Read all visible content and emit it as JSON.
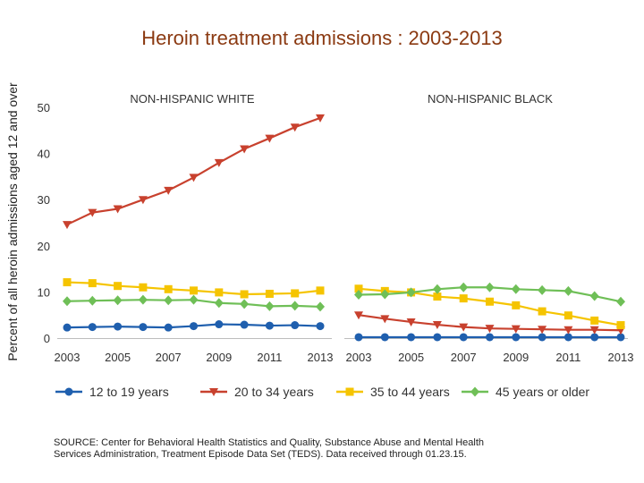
{
  "title": "Heroin treatment admissions : 2003-2013",
  "source_note": "SOURCE: Center for Behavioral Health Statistics and Quality, Substance Abuse and Mental Health Services Administration, Treatment Episode Data Set (TEDS). Data received through 01.23.15.",
  "chart_data": [
    {
      "type": "line",
      "title": "NON-HISPANIC WHITE",
      "ylabel": "Percent of all heroin admissions aged 12 and over",
      "xlabel": "",
      "ylim": [
        0,
        50
      ],
      "yticks": [
        0,
        10,
        20,
        30,
        40,
        50
      ],
      "x": [
        2003,
        2004,
        2005,
        2006,
        2007,
        2008,
        2009,
        2010,
        2011,
        2012,
        2013
      ],
      "xticks": [
        2003,
        2005,
        2007,
        2009,
        2011,
        2013
      ],
      "grid": false,
      "legend": "bottom",
      "series": [
        {
          "name": "12 to 19 years",
          "color": "#1f5fae",
          "marker": "circle",
          "values": [
            2.3,
            2.4,
            2.5,
            2.4,
            2.3,
            2.6,
            3.0,
            2.9,
            2.7,
            2.8,
            2.6
          ]
        },
        {
          "name": "20 to 34 years",
          "color": "#c8412e",
          "marker": "triangle-down",
          "values": [
            24.6,
            27.2,
            28.0,
            30.0,
            32.0,
            34.8,
            38.0,
            41.0,
            43.3,
            45.7,
            47.7
          ]
        },
        {
          "name": "35 to 44 years",
          "color": "#f5c400",
          "marker": "square",
          "values": [
            12.1,
            11.9,
            11.3,
            11.0,
            10.6,
            10.3,
            9.9,
            9.5,
            9.6,
            9.7,
            10.3
          ]
        },
        {
          "name": "45 years or older",
          "color": "#6fbf57",
          "marker": "diamond",
          "values": [
            8.0,
            8.1,
            8.2,
            8.3,
            8.2,
            8.3,
            7.6,
            7.4,
            6.9,
            7.0,
            6.8
          ]
        }
      ]
    },
    {
      "type": "line",
      "title": "NON-HISPANIC BLACK",
      "ylim": [
        0,
        50
      ],
      "x": [
        2003,
        2004,
        2005,
        2006,
        2007,
        2008,
        2009,
        2010,
        2011,
        2012,
        2013
      ],
      "xticks": [
        2003,
        2005,
        2007,
        2009,
        2011,
        2013
      ],
      "grid": false,
      "series": [
        {
          "name": "12 to 19 years",
          "color": "#1f5fae",
          "marker": "circle",
          "values": [
            0.2,
            0.2,
            0.2,
            0.2,
            0.2,
            0.2,
            0.2,
            0.2,
            0.2,
            0.2,
            0.2
          ]
        },
        {
          "name": "20 to 34 years",
          "color": "#c8412e",
          "marker": "triangle-down",
          "values": [
            5.0,
            4.2,
            3.5,
            2.9,
            2.4,
            2.1,
            2.0,
            1.9,
            1.8,
            1.8,
            1.7
          ]
        },
        {
          "name": "35 to 44 years",
          "color": "#f5c400",
          "marker": "square",
          "values": [
            10.7,
            10.2,
            9.9,
            9.0,
            8.6,
            7.9,
            7.1,
            5.8,
            4.9,
            3.8,
            2.8
          ]
        },
        {
          "name": "45 years or older",
          "color": "#6fbf57",
          "marker": "diamond",
          "values": [
            9.4,
            9.5,
            9.9,
            10.6,
            11.0,
            11.0,
            10.6,
            10.4,
            10.2,
            9.1,
            7.9
          ]
        }
      ]
    }
  ]
}
